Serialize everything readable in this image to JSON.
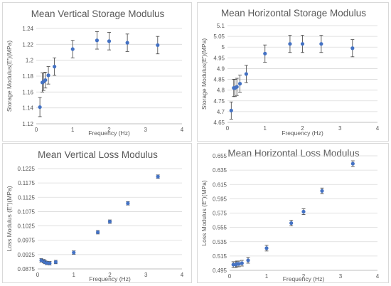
{
  "colors": {
    "marker": "#4472c4",
    "grid": "#d9d9d9",
    "text": "#595959",
    "error_bar": "#404040"
  },
  "chart_data": [
    {
      "type": "scatter",
      "title": "Mean Vertical Storage Modulus",
      "xlabel": "Frequency (Hz)",
      "ylabel": "Storage Modulus(E')(MPa)",
      "xlim": [
        0,
        4
      ],
      "ylim": [
        1.12,
        1.24
      ],
      "xticks": [
        "0",
        "1",
        "2",
        "3",
        "4"
      ],
      "yticks": [
        "1.12",
        "1.14",
        "1.16",
        "1.18",
        "1.2",
        "1.22",
        "1.24"
      ],
      "grid": true,
      "x": [
        0.1,
        0.167,
        0.2,
        0.25,
        0.333,
        0.5,
        1.0,
        1.667,
        2.0,
        2.5,
        3.333
      ],
      "y": [
        1.141,
        1.172,
        1.173,
        1.175,
        1.181,
        1.192,
        1.214,
        1.225,
        1.224,
        1.222,
        1.219
      ],
      "error": [
        0.012,
        0.012,
        0.011,
        0.01,
        0.011,
        0.011,
        0.011,
        0.011,
        0.011,
        0.011,
        0.011
      ]
    },
    {
      "type": "scatter",
      "title": "Mean Horizontal Storage Modulus",
      "xlabel": "Frequency (Hz)",
      "ylabel": "Storage Modulus(E')(MPa)",
      "xlim": [
        0,
        4
      ],
      "ylim": [
        4.65,
        5.1
      ],
      "xticks": [
        "0",
        "1",
        "2",
        "3",
        "4"
      ],
      "yticks": [
        "4.65",
        "4.7",
        "4.75",
        "4.8",
        "4.85",
        "4.9",
        "4.95",
        "5",
        "5.05",
        "5.1"
      ],
      "grid": true,
      "x": [
        0.1,
        0.167,
        0.2,
        0.25,
        0.333,
        0.5,
        1.0,
        1.667,
        2.0,
        2.5,
        3.333
      ],
      "y": [
        4.705,
        4.81,
        4.81,
        4.815,
        4.83,
        4.875,
        4.97,
        5.015,
        5.015,
        5.015,
        4.995
      ],
      "error": [
        0.04,
        0.04,
        0.04,
        0.04,
        0.04,
        0.04,
        0.04,
        0.04,
        0.04,
        0.04,
        0.04
      ]
    },
    {
      "type": "scatter",
      "title": "Mean Vertical Loss Modulus",
      "xlabel": "Frequency (Hz)",
      "ylabel": "Loss Modulus (E\")(MPa)",
      "xlim": [
        0,
        4
      ],
      "ylim": [
        0.0875,
        0.1225
      ],
      "xticks": [
        "0",
        "1",
        "2",
        "3",
        "4"
      ],
      "yticks": [
        "0.0875",
        "0.0925",
        "0.0975",
        "0.1025",
        "0.1075",
        "0.1125",
        "0.1175",
        "0.1225"
      ],
      "grid": true,
      "x": [
        0.1,
        0.167,
        0.2,
        0.25,
        0.333,
        0.5,
        1.0,
        1.667,
        2.0,
        2.5,
        3.333
      ],
      "y": [
        0.0905,
        0.0902,
        0.0899,
        0.0896,
        0.0895,
        0.0899,
        0.0932,
        0.1003,
        0.104,
        0.1104,
        0.1197
      ],
      "error": [
        0.0006,
        0.0006,
        0.0006,
        0.0006,
        0.0006,
        0.0006,
        0.0006,
        0.0006,
        0.0006,
        0.0006,
        0.0006
      ]
    },
    {
      "type": "scatter",
      "title": "Mean Horizontal Loss Modulus",
      "xlabel": "Frequency (Hz)",
      "ylabel": "Loss Modulus (E\")(MPa)",
      "xlim": [
        0,
        4
      ],
      "ylim": [
        0.495,
        0.655
      ],
      "xticks": [
        "0",
        "1",
        "2",
        "3",
        "4"
      ],
      "yticks": [
        "0.495",
        "0.515",
        "0.535",
        "0.555",
        "0.575",
        "0.595",
        "0.615",
        "0.635",
        "0.655"
      ],
      "grid": true,
      "x": [
        0.1,
        0.167,
        0.2,
        0.25,
        0.333,
        0.5,
        1.0,
        1.667,
        2.0,
        2.5,
        3.333
      ],
      "y": [
        0.503,
        0.503,
        0.504,
        0.504,
        0.505,
        0.509,
        0.526,
        0.561,
        0.577,
        0.606,
        0.644
      ],
      "error": [
        0.004,
        0.004,
        0.004,
        0.004,
        0.004,
        0.004,
        0.004,
        0.004,
        0.004,
        0.004,
        0.004
      ]
    }
  ]
}
